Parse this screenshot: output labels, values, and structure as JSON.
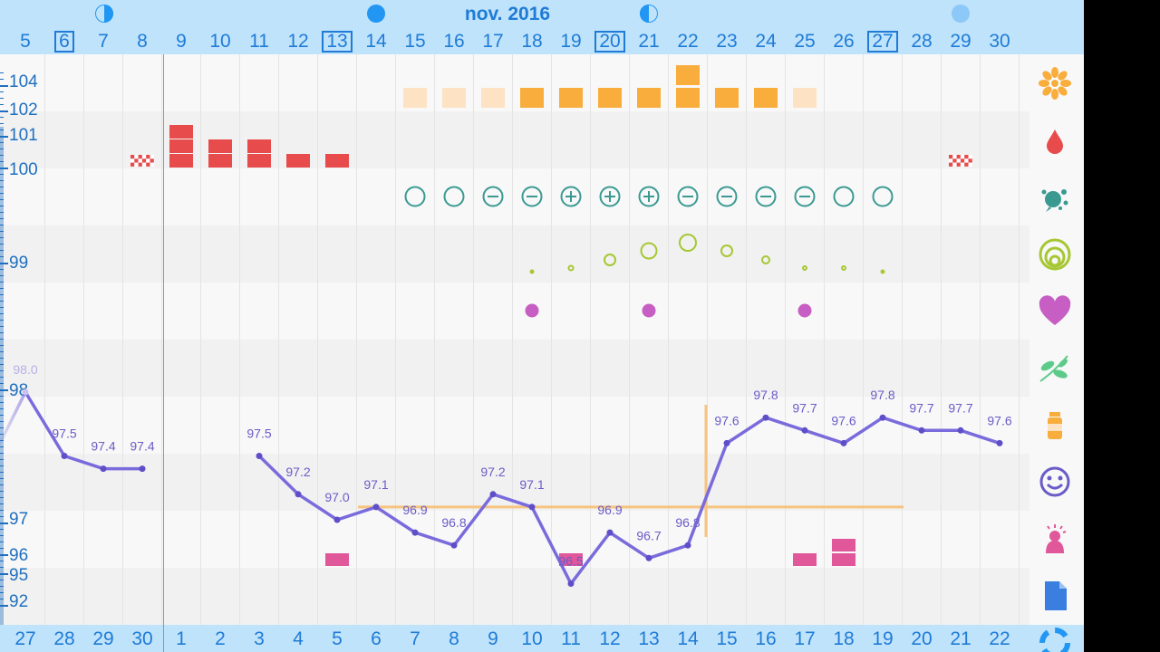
{
  "header": {
    "month_label": "nov. 2016",
    "days": [
      "5",
      "6",
      "7",
      "8",
      "9",
      "10",
      "11",
      "12",
      "13",
      "14",
      "15",
      "16",
      "17",
      "18",
      "19",
      "20",
      "21",
      "22",
      "23",
      "24",
      "25",
      "26",
      "27",
      "28",
      "29",
      "30"
    ],
    "boxed_days": [
      "6",
      "13",
      "20",
      "27"
    ]
  },
  "footer": {
    "days": [
      "27",
      "28",
      "29",
      "30",
      "1",
      "2",
      "3",
      "4",
      "5",
      "6",
      "7",
      "8",
      "9",
      "10",
      "11",
      "12",
      "13",
      "14",
      "15",
      "16",
      "17",
      "18",
      "19",
      "20",
      "21",
      "22"
    ]
  },
  "y_axis": {
    "labels": [
      "104",
      "102",
      "101",
      "100",
      "99",
      "98",
      "97",
      "96",
      "95",
      "92"
    ]
  },
  "chart_data": {
    "type": "line",
    "series": [
      {
        "values": [
          98.0,
          97.5,
          97.4,
          97.4,
          null,
          null,
          97.5,
          97.2,
          97.0,
          97.1,
          96.9,
          96.8,
          97.2,
          97.1,
          96.5,
          96.9,
          96.7,
          96.8,
          97.6,
          97.8,
          97.7,
          97.6,
          97.8,
          97.7,
          97.7,
          97.6
        ]
      }
    ],
    "point_labels": [
      "98.0",
      "97.5",
      "97.4",
      "97.4",
      "",
      "",
      "97.5",
      "97.2",
      "97.0",
      "97.1",
      "96.9",
      "96.8",
      "97.2",
      "97.1",
      "96.5",
      "96.9",
      "96.7",
      "96.8",
      "97.6",
      "97.8",
      "97.7",
      "97.6",
      "97.8",
      "97.7",
      "97.7",
      "97.6"
    ],
    "coverline_value": 97.1,
    "ovulation_day_index": 17
  },
  "sidebar": {
    "icons": [
      "sun-icon",
      "drop-icon",
      "splash-icon",
      "rings-icon",
      "heart-icon",
      "leaf-icon",
      "pill-bottle-icon",
      "smiley-icon",
      "woman-pain-icon",
      "document-icon",
      "lifebuoy-icon"
    ]
  },
  "colors": {
    "header_bg": "#bfe3fb",
    "accent_blue": "#1f7bd6",
    "period_red": "#e84b4b",
    "mucus_teal": "#3a9a92",
    "ovu_green": "#a6c733",
    "orange": "#f8ad3c",
    "pink": "#e0579a",
    "purple": "#7a6bdc"
  }
}
